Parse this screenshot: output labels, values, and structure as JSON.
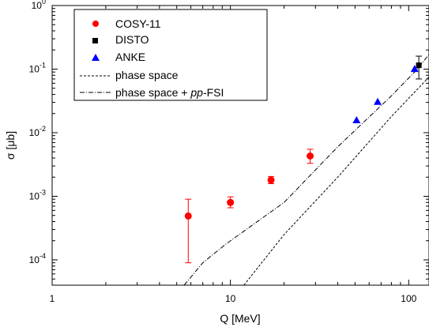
{
  "chart_data": {
    "type": "scatter",
    "title": "",
    "xlabel": "Q [MeV]",
    "ylabel": "σ [μb]",
    "x_scale": "log",
    "y_scale": "log",
    "xlim": [
      1,
      130
    ],
    "ylim": [
      4e-05,
      1
    ],
    "x_ticks": [
      {
        "value": 1,
        "label": "1"
      },
      {
        "value": 10,
        "label": "10"
      },
      {
        "value": 100,
        "label": "100"
      }
    ],
    "y_ticks": [
      {
        "value": 0.0001,
        "base": "10",
        "exp": "-4"
      },
      {
        "value": 0.001,
        "base": "10",
        "exp": "-3"
      },
      {
        "value": 0.01,
        "base": "10",
        "exp": "-2"
      },
      {
        "value": 0.1,
        "base": "10",
        "exp": "-1"
      },
      {
        "value": 1,
        "base": "10",
        "exp": "0"
      }
    ],
    "legend_position": "top-left",
    "series": [
      {
        "name": "COSY-11",
        "marker": "circle",
        "color": "#ff0000",
        "points": [
          {
            "x": 5.8,
            "y": 0.00049,
            "err_lo": 0.0004,
            "err_hi": 0.00041
          },
          {
            "x": 10.0,
            "y": 0.0008,
            "err_lo": 0.00014,
            "err_hi": 0.00018
          },
          {
            "x": 16.9,
            "y": 0.0018,
            "err_lo": 0.00022,
            "err_hi": 0.00025
          },
          {
            "x": 28.0,
            "y": 0.0043,
            "err_lo": 0.001,
            "err_hi": 0.0012
          }
        ]
      },
      {
        "name": "DISTO",
        "marker": "square",
        "color": "#000000",
        "points": [
          {
            "x": 114,
            "y": 0.115,
            "err_lo": 0.045,
            "err_hi": 0.045
          }
        ]
      },
      {
        "name": "ANKE",
        "marker": "triangle",
        "color": "#0000ff",
        "points": [
          {
            "x": 51,
            "y": 0.0158
          },
          {
            "x": 67,
            "y": 0.0307
          },
          {
            "x": 108,
            "y": 0.101
          }
        ]
      }
    ],
    "curves": [
      {
        "name": "phase space",
        "style": "dashed",
        "color": "#000000",
        "points": [
          [
            11.9,
            4e-05
          ],
          [
            20,
            0.00025
          ],
          [
            40,
            0.002
          ],
          [
            80,
            0.018
          ],
          [
            130,
            0.075
          ]
        ]
      },
      {
        "name": "phase space + pp-FSI",
        "name_parts": [
          "phase space + ",
          "pp",
          "-FSI"
        ],
        "style": "dashdot",
        "color": "#000000",
        "points": [
          [
            5.5,
            4e-05
          ],
          [
            7,
            9e-05
          ],
          [
            9.5,
            0.00018
          ],
          [
            20,
            0.0008
          ],
          [
            40,
            0.006
          ],
          [
            80,
            0.038
          ],
          [
            110,
            0.095
          ],
          [
            130,
            0.17
          ]
        ]
      }
    ]
  }
}
